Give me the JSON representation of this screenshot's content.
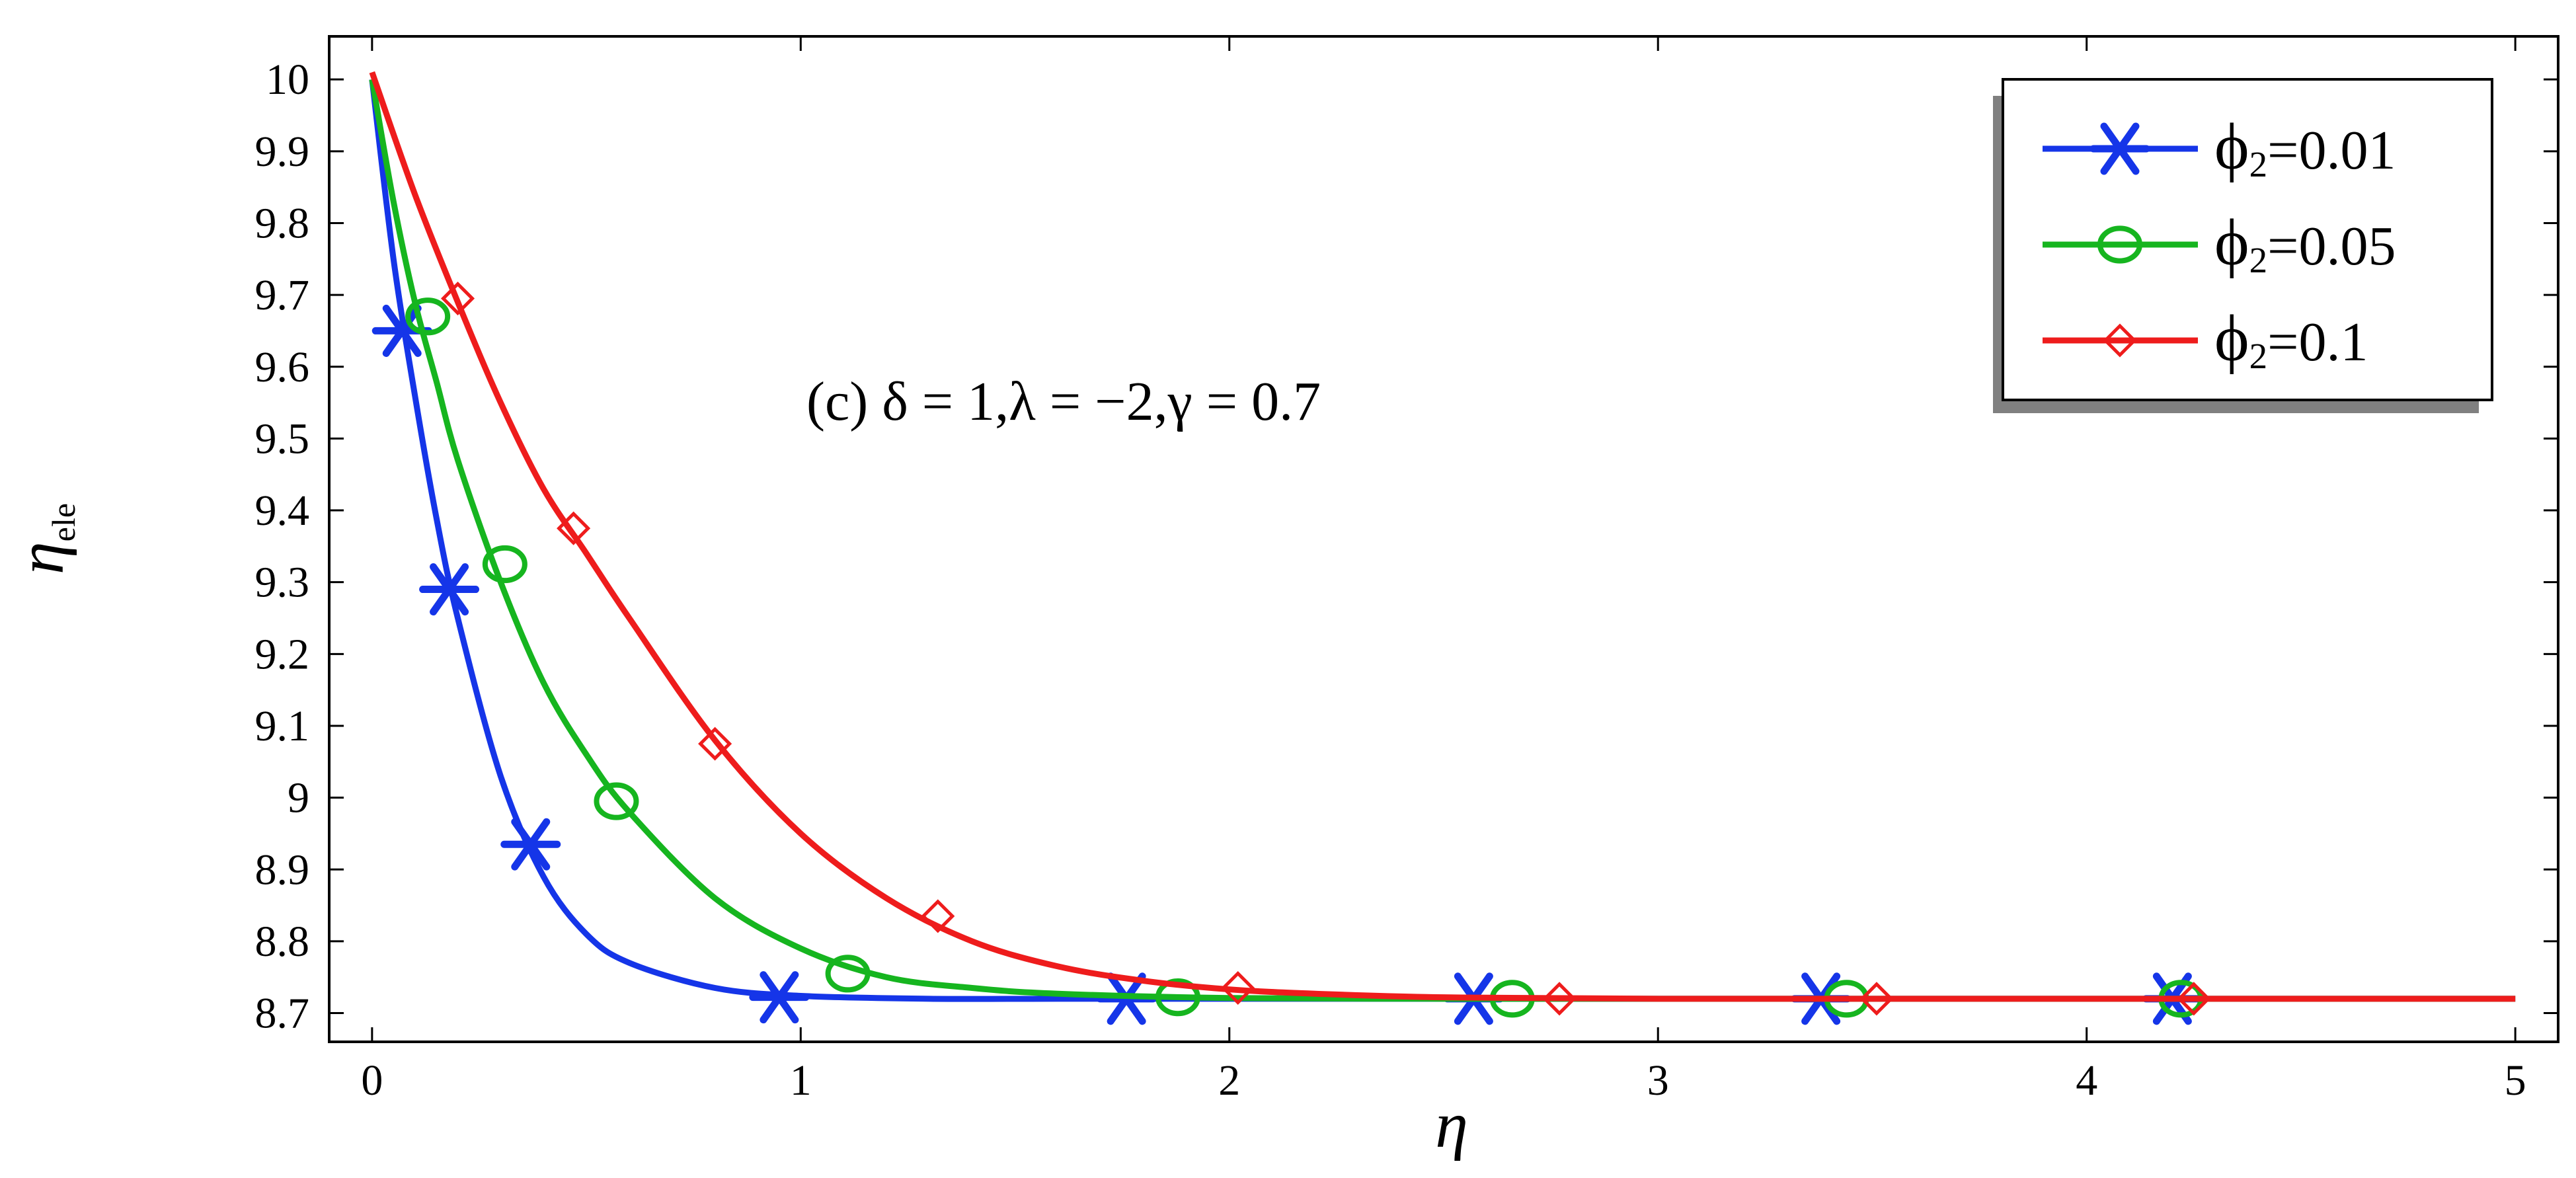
{
  "chart_data": {
    "type": "line",
    "title": "",
    "annotation": "(c) δ = 1,λ = −2,γ = 0.7",
    "xlabel": "η",
    "ylabel": "η",
    "ylabel_sub": "ele",
    "xlim": [
      -0.1,
      5.1
    ],
    "ylim": [
      8.66,
      10.06
    ],
    "xticks": [
      0,
      1,
      2,
      3,
      4,
      5
    ],
    "xtick_labels": [
      "0",
      "1",
      "2",
      "3",
      "4",
      "5"
    ],
    "yticks": [
      8.7,
      8.8,
      8.9,
      9.0,
      9.1,
      9.2,
      9.3,
      9.4,
      9.5,
      9.6,
      9.7,
      9.8,
      9.9,
      10.0
    ],
    "ytick_labels": [
      "8.7",
      "8.8",
      "8.9",
      "9",
      "9.1",
      "9.2",
      "9.3",
      "9.4",
      "9.5",
      "9.6",
      "9.7",
      "9.8",
      "9.9",
      "10"
    ],
    "grid": false,
    "legend_position": "top-right",
    "series": [
      {
        "name": "ϕ₂=0.01",
        "label_main": "ϕ",
        "label_sub": "2",
        "label_value": "=0.01",
        "color": "#1535e8",
        "marker": "asterisk",
        "x": [
          0,
          0.05,
          0.1,
          0.15,
          0.2,
          0.3,
          0.4,
          0.5,
          0.6,
          0.8,
          1.0,
          1.3,
          1.6,
          2.0,
          2.5,
          3.0,
          4.0,
          5.0
        ],
        "y": [
          10.0,
          9.75,
          9.56,
          9.39,
          9.25,
          9.03,
          8.89,
          8.81,
          8.77,
          8.735,
          8.724,
          8.72,
          8.72,
          8.72,
          8.72,
          8.72,
          8.72,
          8.72
        ],
        "markers_x": [
          0.07,
          0.18,
          0.37,
          0.95,
          1.76,
          2.57,
          3.38,
          4.2
        ],
        "markers_y": [
          9.65,
          9.29,
          8.935,
          8.722,
          8.72,
          8.72,
          8.72,
          8.72
        ]
      },
      {
        "name": "ϕ₂=0.05",
        "label_main": "ϕ",
        "label_sub": "2",
        "label_value": "=0.05",
        "color": "#16b51f",
        "marker": "circle",
        "x": [
          0,
          0.05,
          0.1,
          0.15,
          0.2,
          0.3,
          0.4,
          0.5,
          0.6,
          0.8,
          1.0,
          1.2,
          1.4,
          1.6,
          2.0,
          2.5,
          3.0,
          4.0,
          5.0
        ],
        "y": [
          10.0,
          9.83,
          9.69,
          9.58,
          9.47,
          9.3,
          9.16,
          9.06,
          8.98,
          8.86,
          8.79,
          8.75,
          8.735,
          8.727,
          8.721,
          8.72,
          8.72,
          8.72,
          8.72
        ],
        "markers_x": [
          0.13,
          0.31,
          0.57,
          1.11,
          1.88,
          2.66,
          3.44,
          4.22
        ],
        "markers_y": [
          9.67,
          9.325,
          8.995,
          8.755,
          8.722,
          8.72,
          8.72,
          8.72
        ]
      },
      {
        "name": "ϕ₂=0.1",
        "label_main": "ϕ",
        "label_sub": "2",
        "label_value": "=0.1",
        "color": "#ee1c1c",
        "marker": "diamond",
        "x": [
          0,
          0.1,
          0.2,
          0.3,
          0.4,
          0.5,
          0.6,
          0.8,
          1.0,
          1.2,
          1.4,
          1.6,
          1.8,
          2.0,
          2.2,
          2.5,
          3.0,
          4.0,
          5.0
        ],
        "y": [
          10.01,
          9.84,
          9.69,
          9.55,
          9.43,
          9.34,
          9.25,
          9.08,
          8.95,
          8.86,
          8.8,
          8.765,
          8.745,
          8.733,
          8.727,
          8.722,
          8.72,
          8.72,
          8.72
        ],
        "markers_x": [
          0.2,
          0.47,
          0.8,
          1.32,
          2.02,
          2.77,
          3.51,
          4.25
        ],
        "markers_y": [
          9.695,
          9.375,
          9.075,
          8.835,
          8.735,
          8.72,
          8.72,
          8.72
        ]
      }
    ]
  }
}
